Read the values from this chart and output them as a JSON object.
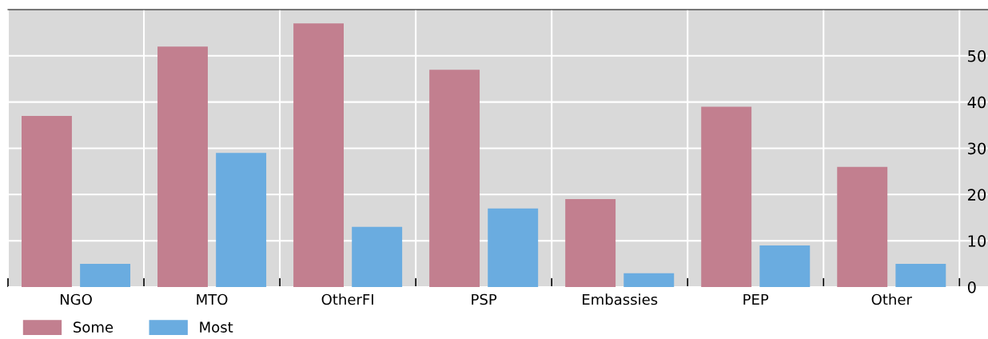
{
  "chart_data": {
    "type": "bar",
    "categories": [
      "NGO",
      "MTO",
      "OtherFI",
      "PSP",
      "Embassies",
      "PEP",
      "Other"
    ],
    "series": [
      {
        "name": "Some",
        "color": "#c27f8f",
        "values": [
          37,
          52,
          57,
          47,
          19,
          39,
          26
        ]
      },
      {
        "name": "Most",
        "color": "#6aace0",
        "values": [
          5,
          29,
          13,
          17,
          3,
          9,
          5
        ]
      }
    ],
    "ylim": [
      0,
      60
    ],
    "yticks": [
      0,
      10,
      20,
      30,
      40,
      50
    ],
    "grid": true,
    "legend": "bottom left"
  }
}
